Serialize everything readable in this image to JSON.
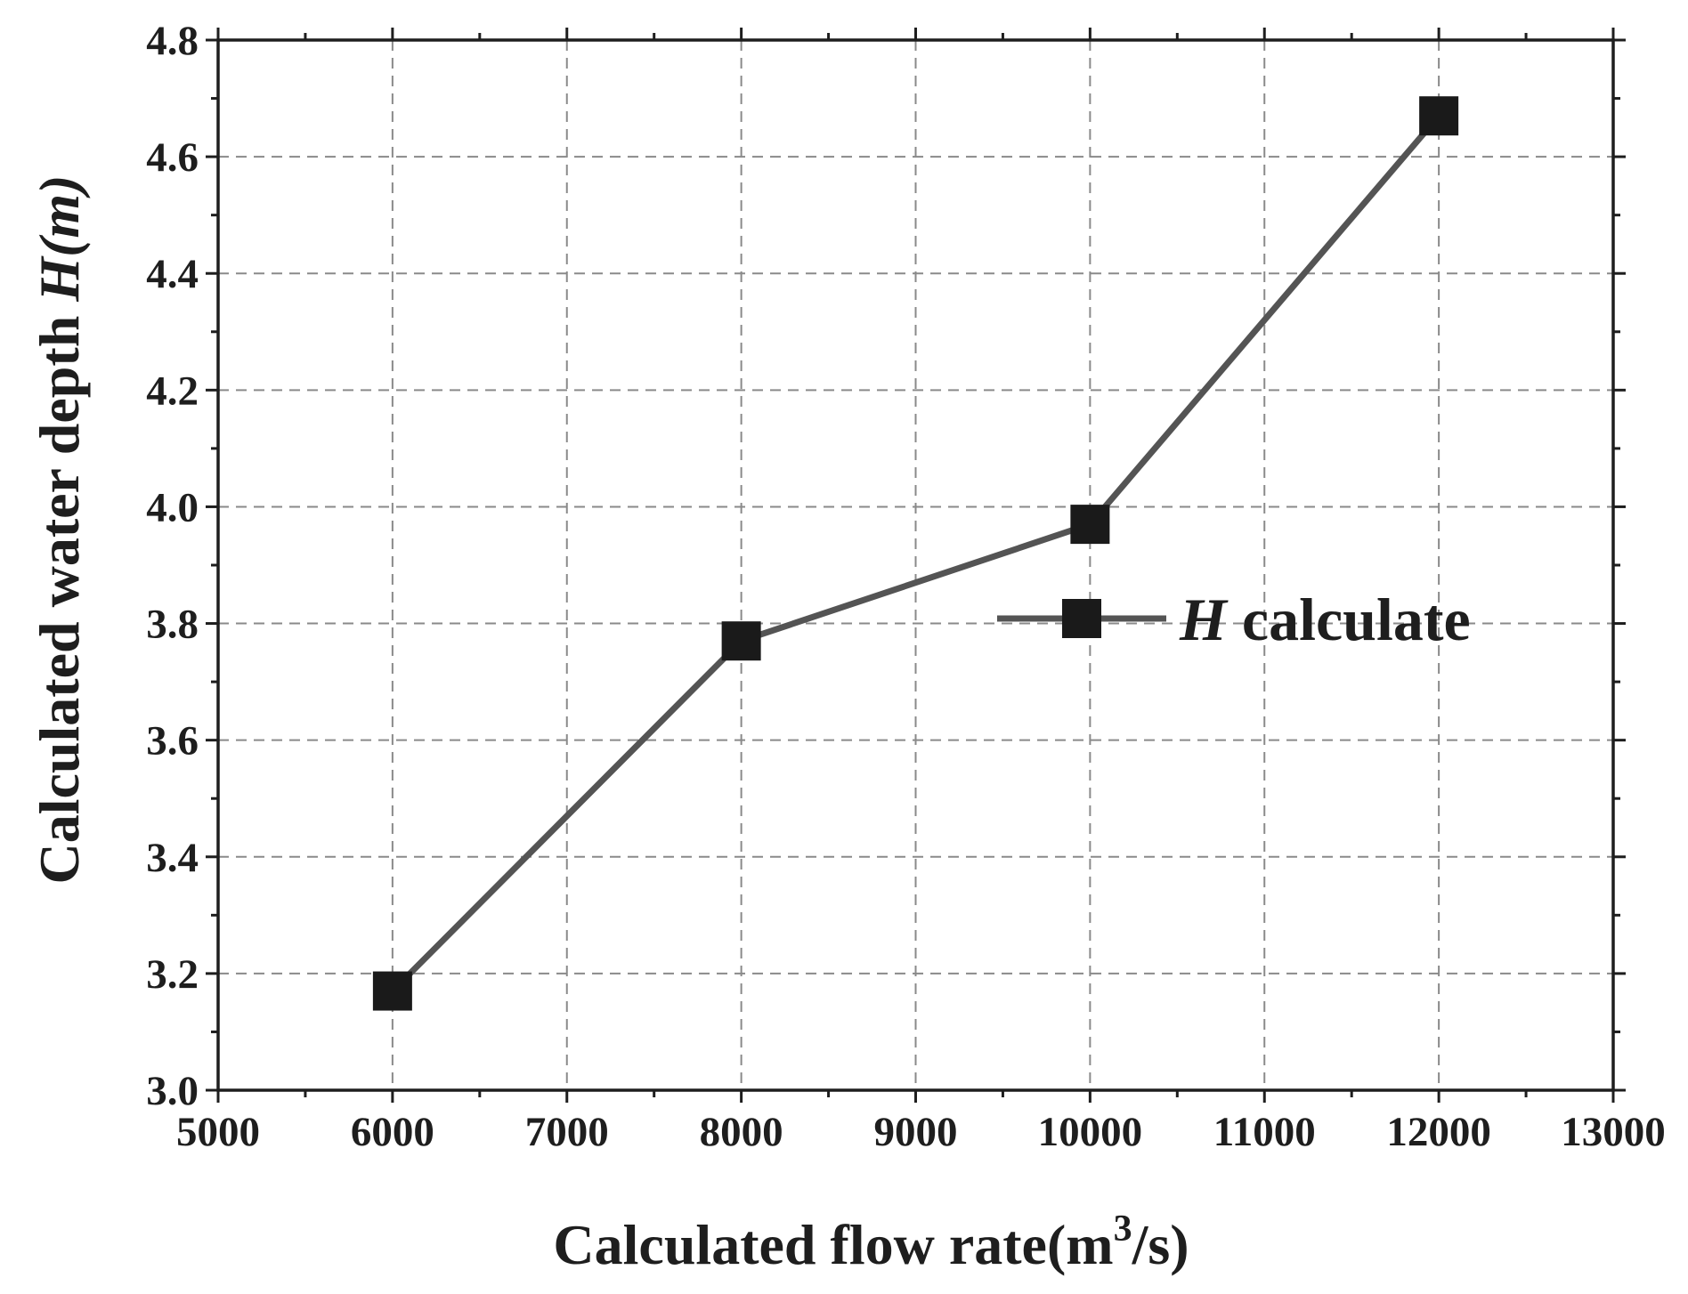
{
  "chart_data": {
    "type": "line",
    "x": [
      6000,
      8000,
      10000,
      12000
    ],
    "series": [
      {
        "name": "H calculate",
        "values": [
          3.17,
          3.77,
          3.97,
          4.67
        ]
      }
    ],
    "legend": {
      "italic_part": "H",
      "rest": " calculate",
      "position": "center-right"
    },
    "xlabel": {
      "main": "Calculated flow rate(m",
      "sup": "3",
      "tail": "/s)"
    },
    "ylabel": {
      "main": "Calculated water depth ",
      "italic": "H(m)"
    },
    "xlim": [
      5000,
      13000
    ],
    "ylim": [
      3.0,
      4.8
    ],
    "xticks": [
      5000,
      6000,
      7000,
      8000,
      9000,
      10000,
      11000,
      12000,
      13000
    ],
    "yticks": [
      "3.0",
      "3.2",
      "3.4",
      "3.6",
      "3.8",
      "4.0",
      "4.2",
      "4.4",
      "4.6",
      "4.8"
    ],
    "grid": true,
    "colors": {
      "line": "#545454",
      "marker": "#1a1a1a",
      "grid": "#8a8a8a",
      "axis": "#1e1e1e"
    }
  }
}
